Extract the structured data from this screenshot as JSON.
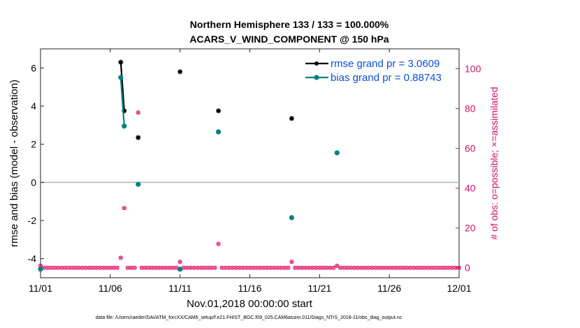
{
  "chart_data": {
    "type": "scatter",
    "title": "Northern Hemisphere 133 / 133 = 100.000%",
    "subtitle": "ACARS_V_WIND_COMPONENT @ 150 hPa",
    "xlabel": "Nov.01,2018 00:00:00 start",
    "ylabel_left": "rmse and bias (model - observation)",
    "ylabel_right": "# of obs: o=possible; ×=assimilated",
    "footer": "data file: /Users/raeder/DAI/ATM_forcXX/CAM6_setup/f.e21.FHIST_BGC.f09_025.CAM6assim.011/Diags_NTrS_2018-11/obs_diag_output.nc",
    "x_ticks": [
      "11/01",
      "11/06",
      "11/11",
      "11/16",
      "11/21",
      "11/26",
      "12/01"
    ],
    "x_tick_days": [
      1,
      6,
      11,
      16,
      21,
      26,
      31
    ],
    "xlim": [
      1,
      31
    ],
    "ylim_left": [
      -5,
      7
    ],
    "y_ticks_left": [
      -4,
      -2,
      0,
      2,
      4,
      6
    ],
    "ylim_right": [
      -5,
      110
    ],
    "y_ticks_right": [
      0,
      20,
      40,
      60,
      80,
      100
    ],
    "grid": false,
    "legend_position": "top-right",
    "colors": {
      "rmse": "#000000",
      "bias": "#008080",
      "obs": "#e0176e",
      "zero_line": "#b0b0b0",
      "right_axis": "#d0106a",
      "legend_text": "#0c4fd6"
    },
    "series": [
      {
        "name": "rmse grand pr = 3.0609",
        "x": [
          6.75,
          7.0,
          8.0,
          11.0,
          13.75,
          19.0
        ],
        "y": [
          6.3,
          3.75,
          2.35,
          5.8,
          3.75,
          3.35
        ],
        "connected": [
          [
            0,
            1
          ]
        ]
      },
      {
        "name": "bias grand pr = 0.88743",
        "x": [
          1.0,
          6.75,
          7.0,
          8.0,
          11.0,
          13.75,
          19.0,
          22.25
        ],
        "y": [
          -4.55,
          5.5,
          2.95,
          -0.1,
          -4.55,
          2.65,
          -1.85,
          1.55
        ],
        "connected": [
          [
            1,
            2
          ]
        ]
      }
    ],
    "obs_possible": {
      "x": [
        1.0,
        6.75,
        7.0,
        8.0,
        11.0,
        13.75,
        19.0,
        22.25
      ],
      "y": [
        1,
        5,
        30,
        78,
        3,
        12,
        3,
        1
      ]
    }
  }
}
